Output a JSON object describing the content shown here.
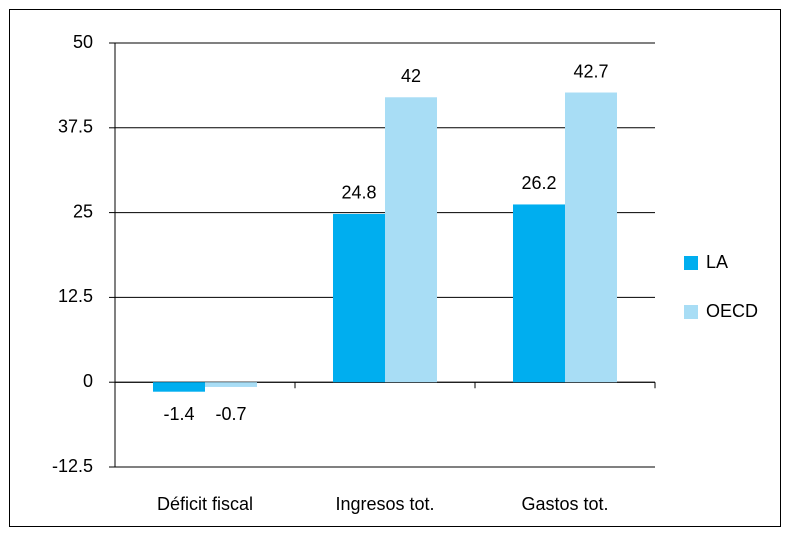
{
  "chart_data": {
    "type": "bar",
    "categories": [
      "Déficit fiscal",
      "Ingresos tot.",
      "Gastos tot."
    ],
    "series": [
      {
        "name": "LA",
        "color": "#00aeef",
        "values": [
          -1.4,
          24.8,
          26.2
        ]
      },
      {
        "name": "OECD",
        "color": "#a8ddf5",
        "values": [
          -0.7,
          42,
          42.7
        ]
      }
    ],
    "ylim": [
      -12.5,
      50
    ],
    "yticks": [
      -12.5,
      0,
      12.5,
      25,
      37.5,
      50
    ],
    "grid": true,
    "legend": "right"
  }
}
